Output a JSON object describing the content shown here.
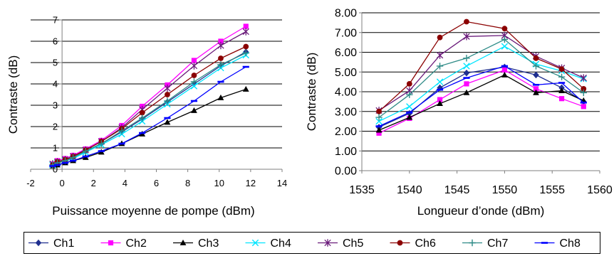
{
  "series_styles": [
    {
      "name": "Ch1",
      "color": "#1f2f8f",
      "marker": "diamond"
    },
    {
      "name": "Ch2",
      "color": "#ff00ff",
      "marker": "square"
    },
    {
      "name": "Ch3",
      "color": "#000000",
      "marker": "triangle"
    },
    {
      "name": "Ch4",
      "color": "#00e5ff",
      "marker": "x"
    },
    {
      "name": "Ch5",
      "color": "#6a1b7a",
      "marker": "star"
    },
    {
      "name": "Ch6",
      "color": "#8b0000",
      "marker": "circle"
    },
    {
      "name": "Ch7",
      "color": "#2e8b87",
      "marker": "plus"
    },
    {
      "name": "Ch8",
      "color": "#0000ff",
      "marker": "dash"
    }
  ],
  "legend": {
    "placement": "bottom",
    "entries": [
      "Ch1",
      "Ch2",
      "Ch3",
      "Ch4",
      "Ch5",
      "Ch6",
      "Ch7",
      "Ch8"
    ]
  },
  "chart_data": [
    {
      "type": "line",
      "title": "",
      "xlabel": "Puissance moyenne de pompe (dBm)",
      "ylabel": "Contraste (dB)",
      "xlim": [
        -2,
        14
      ],
      "ylim": [
        0,
        7
      ],
      "xticks": [
        -2,
        0,
        2,
        4,
        6,
        8,
        10,
        12,
        14
      ],
      "xtick_labels": [
        "-2",
        "0",
        "2",
        "4",
        "6",
        "8",
        "10",
        "12",
        "14"
      ],
      "yticks": [
        0,
        1,
        2,
        3,
        4,
        5,
        6,
        7
      ],
      "ytick_labels": [
        "0",
        "1",
        "2",
        "3",
        "4",
        "5",
        "6",
        "7"
      ],
      "grid": "horizontal",
      "x": [
        -0.6,
        -0.3,
        0.2,
        0.7,
        1.5,
        2.5,
        3.8,
        5.1,
        6.7,
        8.4,
        10.1,
        11.7
      ],
      "series": [
        {
          "name": "Ch1",
          "values": [
            0.2,
            0.3,
            0.4,
            0.55,
            0.85,
            1.2,
            1.75,
            2.35,
            3.15,
            4.0,
            4.85,
            5.5
          ]
        },
        {
          "name": "Ch2",
          "values": [
            0.25,
            0.4,
            0.5,
            0.65,
            0.95,
            1.35,
            2.05,
            2.95,
            3.95,
            5.1,
            6.0,
            6.7
          ]
        },
        {
          "name": "Ch3",
          "values": [
            0.15,
            0.2,
            0.3,
            0.4,
            0.55,
            0.8,
            1.2,
            1.65,
            2.2,
            2.75,
            3.35,
            3.75
          ]
        },
        {
          "name": "Ch4",
          "values": [
            0.2,
            0.3,
            0.4,
            0.5,
            0.8,
            1.15,
            1.65,
            2.25,
            3.05,
            3.9,
            4.75,
            5.35
          ]
        },
        {
          "name": "Ch5",
          "values": [
            0.25,
            0.35,
            0.45,
            0.6,
            0.9,
            1.3,
            1.95,
            2.8,
            3.8,
            4.85,
            5.8,
            6.45
          ]
        },
        {
          "name": "Ch6",
          "values": [
            0.2,
            0.35,
            0.45,
            0.6,
            0.9,
            1.3,
            1.9,
            2.65,
            3.5,
            4.4,
            5.2,
            5.75
          ]
        },
        {
          "name": "Ch7",
          "values": [
            0.2,
            0.3,
            0.4,
            0.55,
            0.85,
            1.2,
            1.8,
            2.4,
            3.2,
            4.1,
            4.9,
            5.45
          ]
        },
        {
          "name": "Ch8",
          "values": [
            0.15,
            0.2,
            0.3,
            0.4,
            0.6,
            0.85,
            1.2,
            1.7,
            2.4,
            3.2,
            4.1,
            4.8
          ]
        }
      ]
    },
    {
      "type": "line",
      "title": "",
      "xlabel": "Longueur d’onde (dBm)",
      "ylabel": "Contraste (dB)",
      "xlim": [
        1535,
        1560
      ],
      "ylim": [
        0,
        8
      ],
      "xticks": [
        1535,
        1540,
        1545,
        1550,
        1555,
        1560
      ],
      "xtick_labels": [
        "1535",
        "1540",
        "1545",
        "1550",
        "1555",
        "1560"
      ],
      "yticks": [
        0,
        1,
        2,
        3,
        4,
        5,
        6,
        7,
        8
      ],
      "ytick_labels": [
        "0.00",
        "1.00",
        "2.00",
        "3.00",
        "4.00",
        "5.00",
        "6.00",
        "7.00",
        "8.00"
      ],
      "grid": "horizontal",
      "x": [
        1536.8,
        1540.0,
        1543.2,
        1546.0,
        1550.0,
        1553.3,
        1556.0,
        1558.3
      ],
      "series": [
        {
          "name": "Ch1",
          "values": [
            2.2,
            2.9,
            4.2,
            4.95,
            5.25,
            4.85,
            4.2,
            3.5
          ]
        },
        {
          "name": "Ch2",
          "values": [
            1.9,
            2.65,
            3.6,
            4.4,
            5.1,
            4.15,
            3.65,
            3.25
          ]
        },
        {
          "name": "Ch3",
          "values": [
            2.05,
            2.7,
            3.4,
            3.95,
            4.85,
            3.95,
            4.05,
            3.55
          ]
        },
        {
          "name": "Ch4",
          "values": [
            2.5,
            3.25,
            4.5,
            5.3,
            6.3,
            5.4,
            5.05,
            4.65
          ]
        },
        {
          "name": "Ch5",
          "values": [
            3.05,
            4.05,
            5.85,
            6.8,
            6.85,
            5.8,
            5.2,
            4.7
          ]
        },
        {
          "name": "Ch6",
          "values": [
            3.0,
            4.4,
            6.75,
            7.55,
            7.2,
            5.7,
            5.15,
            4.15
          ]
        },
        {
          "name": "Ch7",
          "values": [
            2.7,
            3.85,
            5.3,
            5.7,
            6.65,
            5.3,
            4.75,
            3.95
          ]
        },
        {
          "name": "Ch8",
          "values": [
            2.25,
            2.95,
            4.1,
            4.7,
            5.3,
            4.35,
            4.45,
            3.45
          ]
        }
      ]
    }
  ]
}
